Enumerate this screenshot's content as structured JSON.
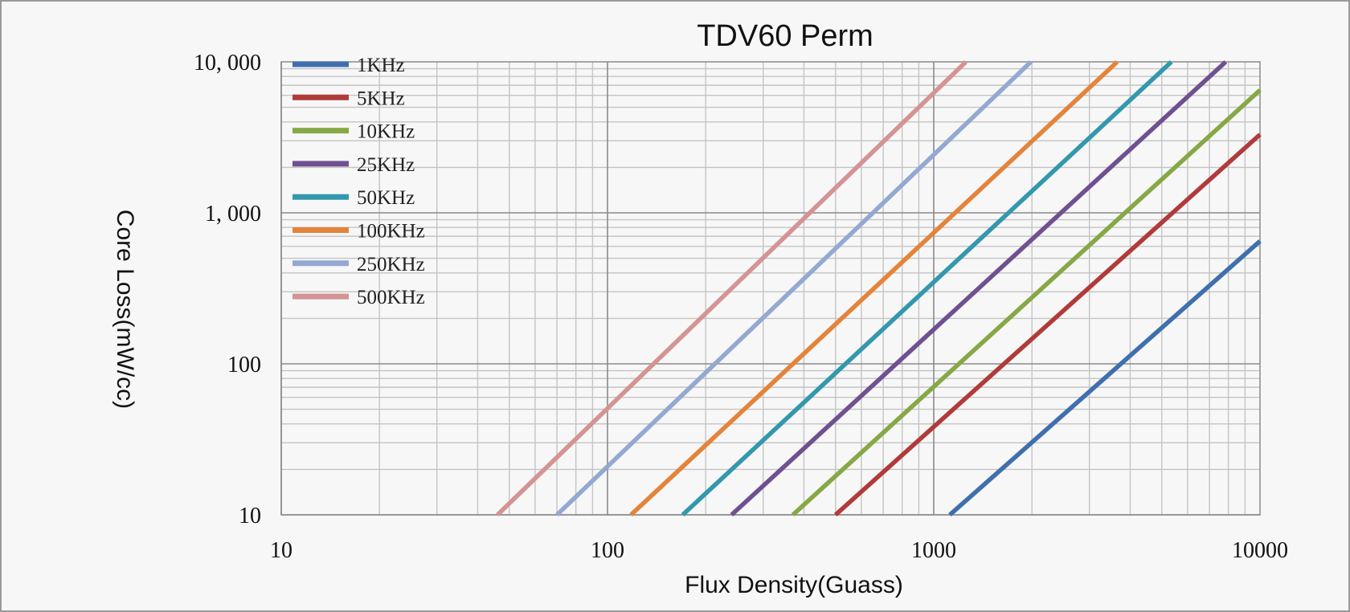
{
  "chart_data": {
    "type": "line",
    "title": "TDV60 Perm",
    "xlabel": "Flux  Density(Guass)",
    "ylabel": "Core Loss(mW/cc)",
    "xscale": "log",
    "yscale": "log",
    "xlim": [
      10,
      10000
    ],
    "ylim": [
      10,
      10000
    ],
    "x_ticks": [
      10,
      100,
      1000,
      10000
    ],
    "x_tick_labels": [
      "10",
      "100",
      "1000",
      "10000"
    ],
    "y_ticks": [
      10,
      100,
      1000,
      10000
    ],
    "y_tick_labels": [
      "10",
      "100",
      "1, 000",
      "10, 000"
    ],
    "grid": true,
    "legend_position": "top-left",
    "series": [
      {
        "name": "1KHz",
        "color": "#3f6fad",
        "x": [
          1120,
          10000
        ],
        "y": [
          10,
          650
        ]
      },
      {
        "name": "5KHz",
        "color": "#b03b3a",
        "x": [
          500,
          10000
        ],
        "y": [
          10,
          3300
        ]
      },
      {
        "name": "10KHz",
        "color": "#86a845",
        "x": [
          370,
          10000
        ],
        "y": [
          10,
          6500
        ]
      },
      {
        "name": "25KHz",
        "color": "#6f5091",
        "x": [
          240,
          7850
        ],
        "y": [
          10,
          10000
        ]
      },
      {
        "name": "50KHz",
        "color": "#3398ad",
        "x": [
          170,
          5350
        ],
        "y": [
          10,
          10000
        ]
      },
      {
        "name": "100KHz",
        "color": "#e4843a",
        "x": [
          118,
          3650
        ],
        "y": [
          10,
          10000
        ]
      },
      {
        "name": "250KHz",
        "color": "#93a9d1",
        "x": [
          70,
          1985
        ],
        "y": [
          10,
          10000
        ]
      },
      {
        "name": "500KHz",
        "color": "#d59393",
        "x": [
          46,
          1255
        ],
        "y": [
          10,
          10000
        ]
      }
    ]
  }
}
